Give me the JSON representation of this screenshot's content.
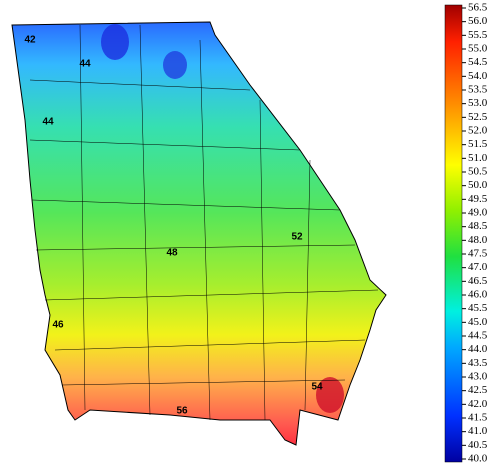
{
  "contour_labels": [
    "42",
    "44",
    "44",
    "46",
    "48",
    "52",
    "54",
    "56"
  ],
  "colorbar": {
    "lim": [
      40,
      56.5
    ],
    "ticks": [
      {
        "value": 40,
        "label": "40.0"
      },
      {
        "value": 40.5,
        "label": "40.5"
      },
      {
        "value": 41,
        "label": "41.0"
      },
      {
        "value": 41.5,
        "label": "41.5"
      },
      {
        "value": 42,
        "label": "42.0"
      },
      {
        "value": 42.5,
        "label": "42.5"
      },
      {
        "value": 43,
        "label": "43.0"
      },
      {
        "value": 43.5,
        "label": "43.5"
      },
      {
        "value": 44,
        "label": "44.0"
      },
      {
        "value": 44.5,
        "label": "44.5"
      },
      {
        "value": 45,
        "label": "45.0"
      },
      {
        "value": 45.5,
        "label": "45.5"
      },
      {
        "value": 46,
        "label": "46.0"
      },
      {
        "value": 46.5,
        "label": "46.5"
      },
      {
        "value": 47,
        "label": "47.0"
      },
      {
        "value": 47.5,
        "label": "47.5"
      },
      {
        "value": 48,
        "label": "48.0"
      },
      {
        "value": 48.5,
        "label": "48.5"
      },
      {
        "value": 49,
        "label": "49.0"
      },
      {
        "value": 49.5,
        "label": "49.5"
      },
      {
        "value": 50,
        "label": "50.0"
      },
      {
        "value": 50.5,
        "label": "50.5"
      },
      {
        "value": 51,
        "label": "51.0"
      },
      {
        "value": 51.5,
        "label": "51.5"
      },
      {
        "value": 52,
        "label": "52.0"
      },
      {
        "value": 52.5,
        "label": "52.5"
      },
      {
        "value": 53,
        "label": "53.0"
      },
      {
        "value": 53.5,
        "label": "53.5"
      },
      {
        "value": 54,
        "label": "54.0"
      },
      {
        "value": 54.5,
        "label": "54.5"
      },
      {
        "value": 55,
        "label": "55.0"
      },
      {
        "value": 55.5,
        "label": "55.5"
      },
      {
        "value": 56,
        "label": "56.0"
      },
      {
        "value": 56.5,
        "label": "56.5"
      }
    ]
  }
}
